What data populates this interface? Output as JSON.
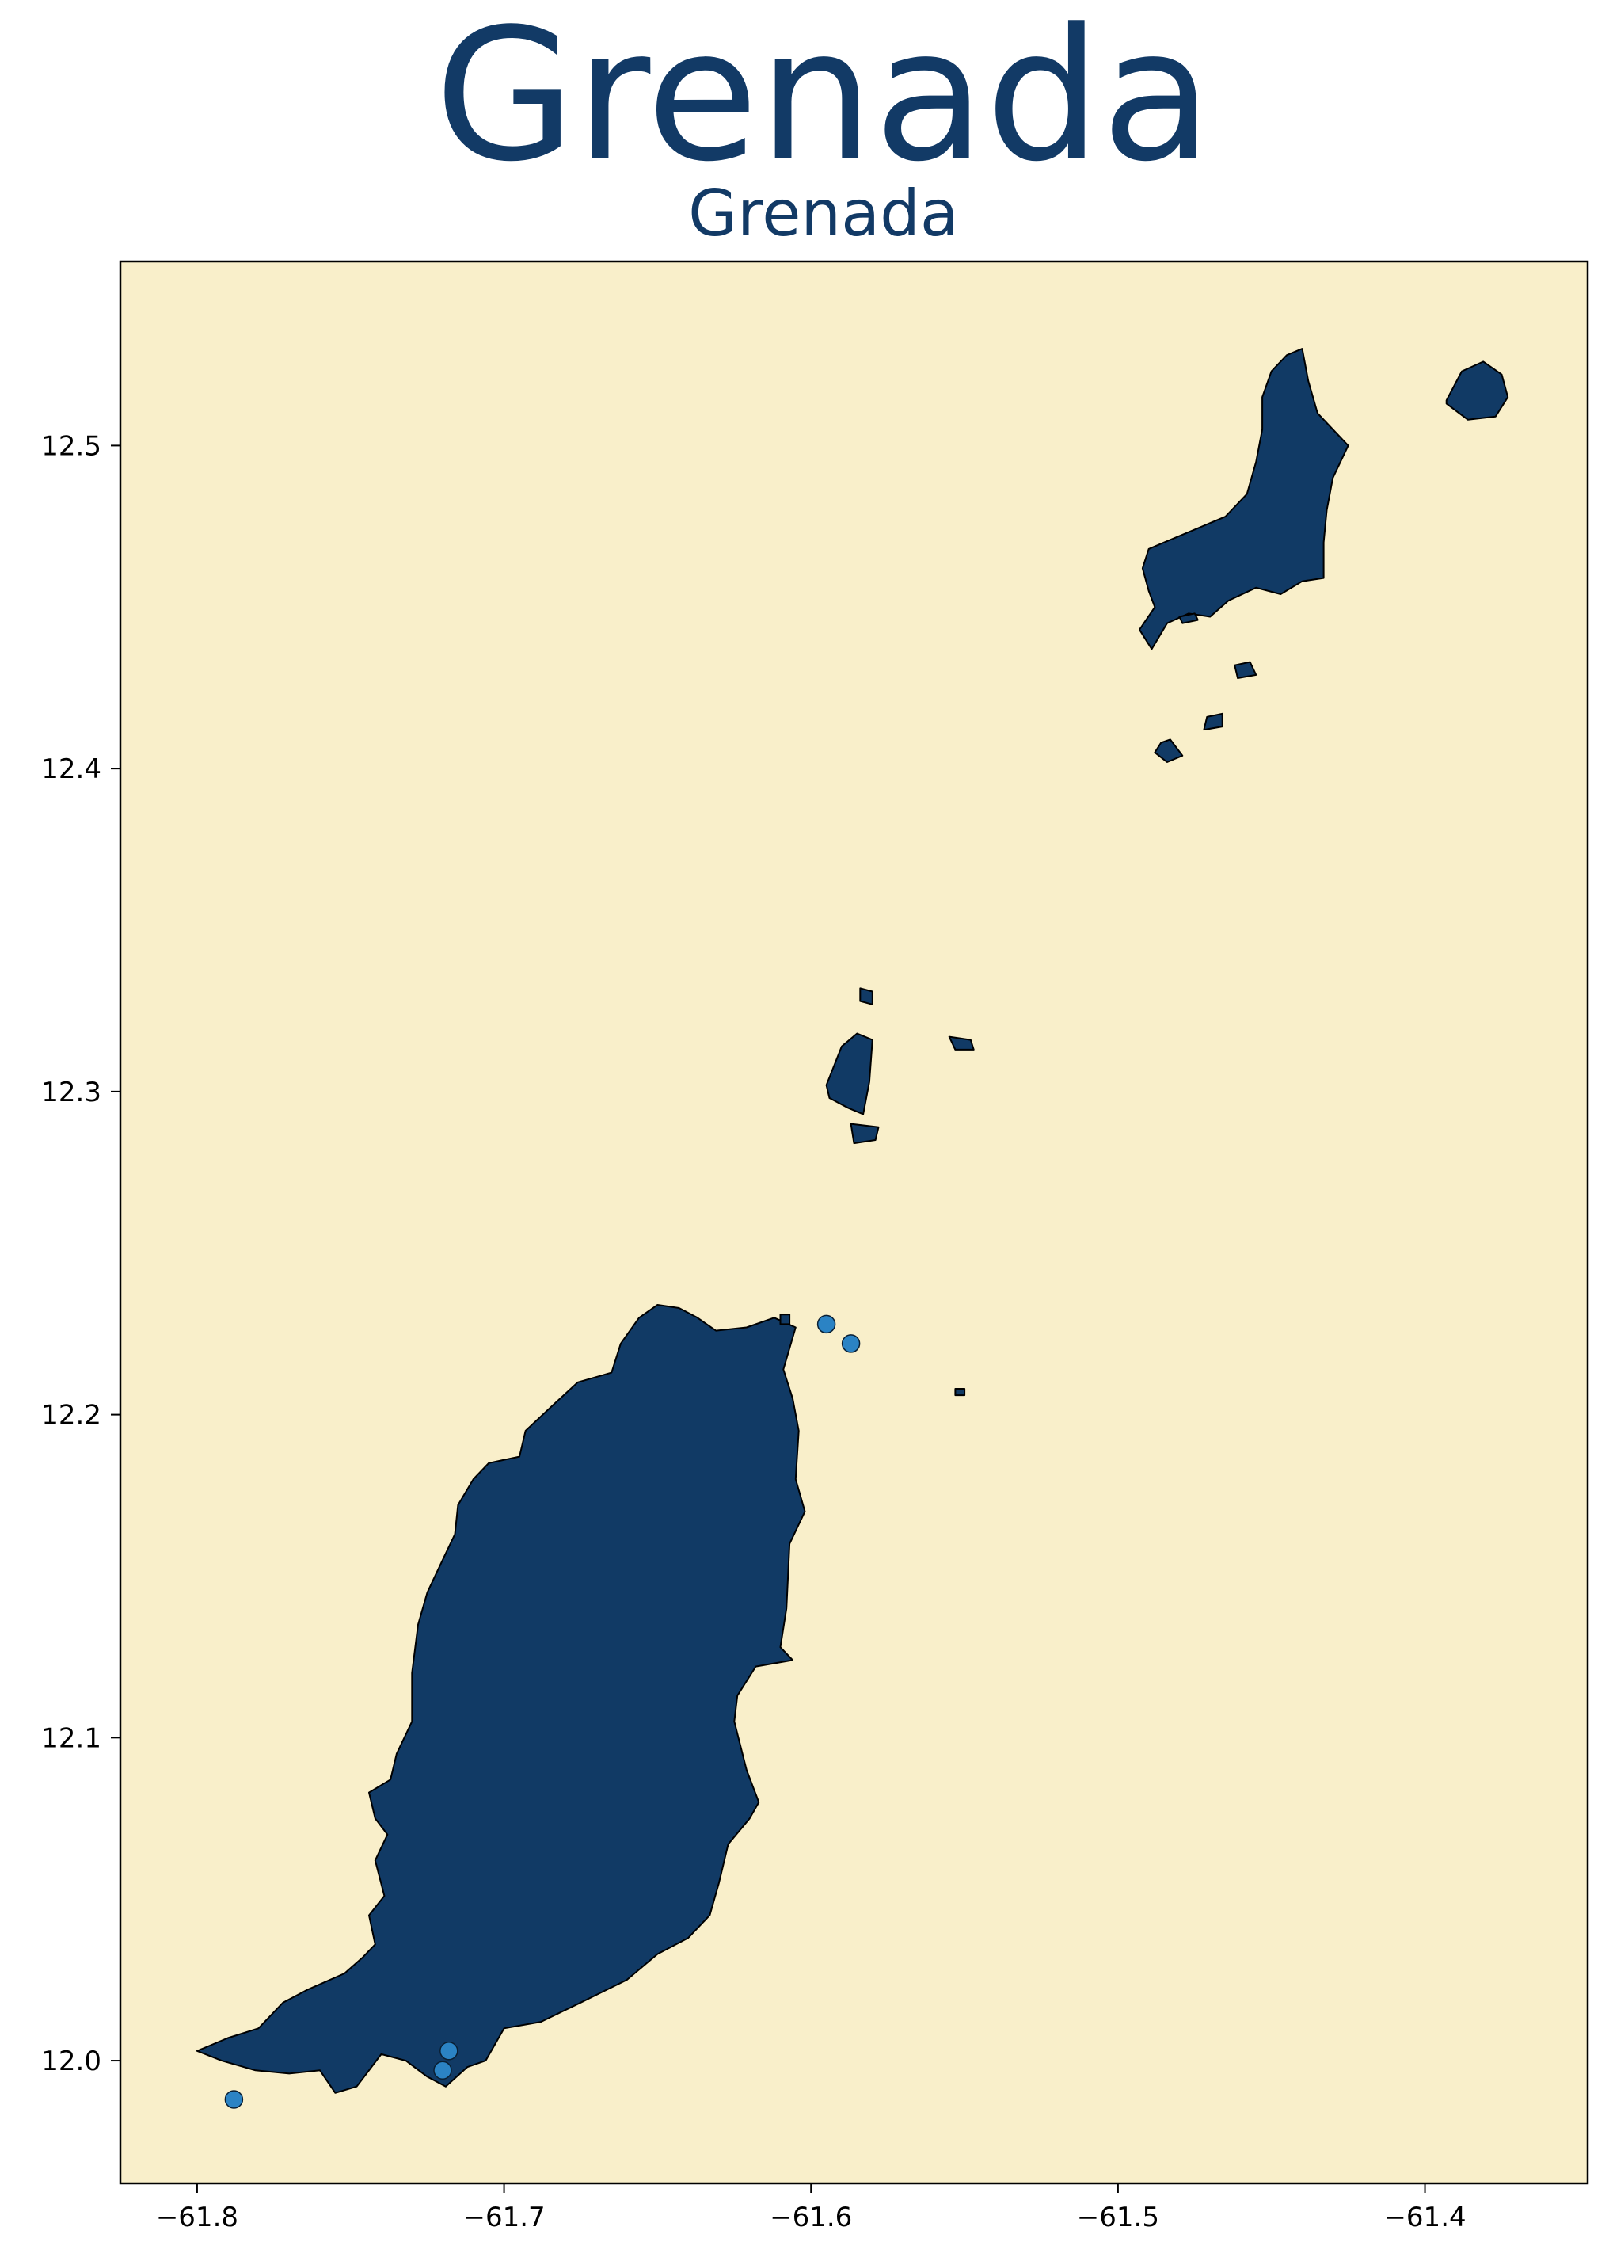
{
  "map": {
    "title": "Grenada",
    "subtitle": "Grenada",
    "colors": {
      "title": "#123a66",
      "ocean": "#f9efca",
      "land": "#113a65",
      "coastline": "#000000",
      "marker_fill": "#2b83c4",
      "marker_edge": "#0a1f33",
      "frame": "#000000"
    },
    "xlim": [
      -61.825,
      -61.347
    ],
    "ylim": [
      11.962,
      12.557
    ],
    "x_ticks": [
      {
        "value": -61.8,
        "label": "−61.8"
      },
      {
        "value": -61.7,
        "label": "−61.7"
      },
      {
        "value": -61.6,
        "label": "−61.6"
      },
      {
        "value": -61.5,
        "label": "−61.5"
      },
      {
        "value": -61.4,
        "label": "−61.4"
      }
    ],
    "y_ticks": [
      {
        "value": 12.0,
        "label": "12.0"
      },
      {
        "value": 12.1,
        "label": "12.1"
      },
      {
        "value": 12.2,
        "label": "12.2"
      },
      {
        "value": 12.3,
        "label": "12.3"
      },
      {
        "value": 12.4,
        "label": "12.4"
      },
      {
        "value": 12.5,
        "label": "12.5"
      }
    ],
    "islands": [
      {
        "name": "grenada-main-island",
        "coords": [
          [
            -61.8,
            12.003
          ],
          [
            -61.79,
            12.007
          ],
          [
            -61.78,
            12.01
          ],
          [
            -61.772,
            12.018
          ],
          [
            -61.764,
            12.022
          ],
          [
            -61.752,
            12.027
          ],
          [
            -61.746,
            12.032
          ],
          [
            -61.742,
            12.036
          ],
          [
            -61.744,
            12.045
          ],
          [
            -61.739,
            12.051
          ],
          [
            -61.742,
            12.062
          ],
          [
            -61.738,
            12.07
          ],
          [
            -61.742,
            12.075
          ],
          [
            -61.744,
            12.083
          ],
          [
            -61.737,
            12.087
          ],
          [
            -61.735,
            12.095
          ],
          [
            -61.73,
            12.105
          ],
          [
            -61.73,
            12.12
          ],
          [
            -61.728,
            12.135
          ],
          [
            -61.725,
            12.145
          ],
          [
            -61.72,
            12.155
          ],
          [
            -61.716,
            12.163
          ],
          [
            -61.715,
            12.172
          ],
          [
            -61.71,
            12.18
          ],
          [
            -61.705,
            12.185
          ],
          [
            -61.695,
            12.187
          ],
          [
            -61.693,
            12.195
          ],
          [
            -61.684,
            12.203
          ],
          [
            -61.676,
            12.21
          ],
          [
            -61.665,
            12.213
          ],
          [
            -61.662,
            12.222
          ],
          [
            -61.656,
            12.23
          ],
          [
            -61.65,
            12.234
          ],
          [
            -61.643,
            12.233
          ],
          [
            -61.637,
            12.23
          ],
          [
            -61.631,
            12.226
          ],
          [
            -61.621,
            12.227
          ],
          [
            -61.612,
            12.23
          ],
          [
            -61.605,
            12.227
          ],
          [
            -61.609,
            12.214
          ],
          [
            -61.606,
            12.205
          ],
          [
            -61.604,
            12.195
          ],
          [
            -61.605,
            12.18
          ],
          [
            -61.602,
            12.17
          ],
          [
            -61.607,
            12.16
          ],
          [
            -61.608,
            12.14
          ],
          [
            -61.61,
            12.128
          ],
          [
            -61.606,
            12.124
          ],
          [
            -61.618,
            12.122
          ],
          [
            -61.624,
            12.113
          ],
          [
            -61.625,
            12.105
          ],
          [
            -61.621,
            12.09
          ],
          [
            -61.617,
            12.08
          ],
          [
            -61.62,
            12.075
          ],
          [
            -61.627,
            12.067
          ],
          [
            -61.63,
            12.055
          ],
          [
            -61.633,
            12.045
          ],
          [
            -61.64,
            12.038
          ],
          [
            -61.65,
            12.033
          ],
          [
            -61.66,
            12.025
          ],
          [
            -61.675,
            12.018
          ],
          [
            -61.688,
            12.012
          ],
          [
            -61.7,
            12.01
          ],
          [
            -61.706,
            12.0
          ],
          [
            -61.712,
            11.998
          ],
          [
            -61.719,
            11.992
          ],
          [
            -61.725,
            11.995
          ],
          [
            -61.732,
            12.0
          ],
          [
            -61.74,
            12.002
          ],
          [
            -61.748,
            11.992
          ],
          [
            -61.755,
            11.99
          ],
          [
            -61.76,
            11.997
          ],
          [
            -61.77,
            11.996
          ],
          [
            -61.781,
            11.997
          ],
          [
            -61.792,
            12.0
          ]
        ]
      },
      {
        "name": "carriacou-island",
        "coords": [
          [
            -61.49,
            12.455
          ],
          [
            -61.488,
            12.45
          ],
          [
            -61.493,
            12.443
          ],
          [
            -61.489,
            12.437
          ],
          [
            -61.484,
            12.445
          ],
          [
            -61.477,
            12.448
          ],
          [
            -61.47,
            12.447
          ],
          [
            -61.464,
            12.452
          ],
          [
            -61.455,
            12.456
          ],
          [
            -61.447,
            12.454
          ],
          [
            -61.44,
            12.458
          ],
          [
            -61.433,
            12.459
          ],
          [
            -61.433,
            12.47
          ],
          [
            -61.432,
            12.48
          ],
          [
            -61.43,
            12.49
          ],
          [
            -61.425,
            12.5
          ],
          [
            -61.43,
            12.505
          ],
          [
            -61.435,
            12.51
          ],
          [
            -61.438,
            12.52
          ],
          [
            -61.44,
            12.53
          ],
          [
            -61.445,
            12.528
          ],
          [
            -61.45,
            12.523
          ],
          [
            -61.453,
            12.515
          ],
          [
            -61.453,
            12.505
          ],
          [
            -61.455,
            12.495
          ],
          [
            -61.458,
            12.485
          ],
          [
            -61.465,
            12.478
          ],
          [
            -61.475,
            12.474
          ],
          [
            -61.485,
            12.47
          ],
          [
            -61.49,
            12.468
          ],
          [
            -61.492,
            12.462
          ]
        ]
      },
      {
        "name": "petite-martinique-island",
        "coords": [
          [
            -61.393,
            12.514
          ],
          [
            -61.388,
            12.523
          ],
          [
            -61.381,
            12.526
          ],
          [
            -61.375,
            12.522
          ],
          [
            -61.373,
            12.515
          ],
          [
            -61.377,
            12.509
          ],
          [
            -61.386,
            12.508
          ],
          [
            -61.393,
            12.513
          ]
        ]
      },
      {
        "name": "isle-de-ronde",
        "coords": [
          [
            -61.595,
            12.302
          ],
          [
            -61.59,
            12.314
          ],
          [
            -61.585,
            12.318
          ],
          [
            -61.58,
            12.316
          ],
          [
            -61.581,
            12.303
          ],
          [
            -61.583,
            12.293
          ],
          [
            -61.588,
            12.295
          ],
          [
            -61.594,
            12.298
          ]
        ]
      },
      {
        "name": "islet-south-of-ronde",
        "coords": [
          [
            -61.587,
            12.29
          ],
          [
            -61.578,
            12.289
          ],
          [
            -61.579,
            12.285
          ],
          [
            -61.586,
            12.284
          ]
        ]
      },
      {
        "name": "islet-north-of-ronde",
        "coords": [
          [
            -61.584,
            12.332
          ],
          [
            -61.58,
            12.331
          ],
          [
            -61.58,
            12.327
          ],
          [
            -61.584,
            12.328
          ]
        ]
      },
      {
        "name": "caille-island",
        "coords": [
          [
            -61.555,
            12.317
          ],
          [
            -61.548,
            12.316
          ],
          [
            -61.547,
            12.313
          ],
          [
            -61.553,
            12.313
          ]
        ]
      },
      {
        "name": "frigate-island",
        "coords": [
          [
            -61.462,
            12.432
          ],
          [
            -61.457,
            12.433
          ],
          [
            -61.455,
            12.429
          ],
          [
            -61.461,
            12.428
          ]
        ]
      },
      {
        "name": "large-island",
        "coords": [
          [
            -61.471,
            12.416
          ],
          [
            -61.466,
            12.417
          ],
          [
            -61.466,
            12.413
          ],
          [
            -61.472,
            12.412
          ]
        ]
      },
      {
        "name": "saline-island",
        "coords": [
          [
            -61.486,
            12.408
          ],
          [
            -61.483,
            12.409
          ],
          [
            -61.479,
            12.404
          ],
          [
            -61.484,
            12.402
          ],
          [
            -61.488,
            12.405
          ]
        ]
      },
      {
        "name": "white-island-islet",
        "coords": [
          [
            -61.48,
            12.447
          ],
          [
            -61.475,
            12.448
          ],
          [
            -61.474,
            12.446
          ],
          [
            -61.479,
            12.445
          ]
        ]
      },
      {
        "name": "levera-islet",
        "coords": [
          [
            -61.61,
            12.231
          ],
          [
            -61.607,
            12.231
          ],
          [
            -61.607,
            12.228
          ],
          [
            -61.61,
            12.228
          ]
        ]
      },
      {
        "name": "small-islet-east",
        "coords": [
          [
            -61.553,
            12.208
          ],
          [
            -61.55,
            12.208
          ],
          [
            -61.55,
            12.206
          ],
          [
            -61.553,
            12.206
          ]
        ]
      }
    ],
    "markers": [
      {
        "lon": -61.595,
        "lat": 12.228
      },
      {
        "lon": -61.587,
        "lat": 12.222
      },
      {
        "lon": -61.718,
        "lat": 12.003
      },
      {
        "lon": -61.72,
        "lat": 11.997
      },
      {
        "lon": -61.788,
        "lat": 11.988
      }
    ]
  }
}
